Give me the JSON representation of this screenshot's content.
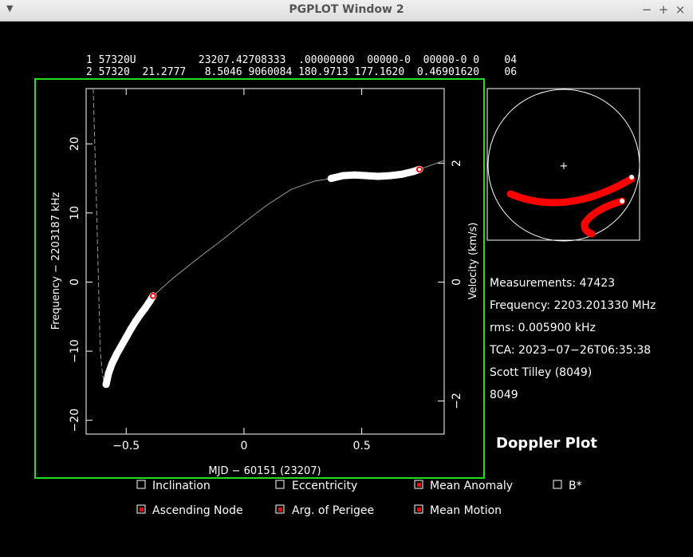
{
  "window": {
    "title": "PGPLOT Window 2"
  },
  "tle": {
    "line1": "1 57320U          23207.42708333  .00000000  00000-0  00000-0 0    04",
    "line2": "2 57320  21.2777   8.5046 9060084 180.9713 177.1620  0.46901620    06"
  },
  "chart_data": {
    "type": "scatter",
    "xlabel": "MJD − 60151 (23207)",
    "ylabel": "Frequency − 2203187 kHz",
    "y2label": "Velocity (km/s)",
    "xlim": [
      -0.67,
      0.85
    ],
    "ylim": [
      -22,
      28
    ],
    "x_ticks": [
      -0.5,
      0,
      0.5
    ],
    "x_tick_labels": [
      "−0.5",
      "0",
      "0.5"
    ],
    "y_ticks": [
      -20,
      -10,
      0,
      10,
      20
    ],
    "y_tick_labels": [
      "−20",
      "−10",
      "0",
      "10",
      "20"
    ],
    "y2_ticks": [
      -2,
      0,
      2
    ],
    "y2_tick_labels": [
      "−2",
      "0",
      "2"
    ],
    "series": [
      {
        "color": "#ffffff",
        "x": [
          -0.585,
          -0.575,
          -0.56,
          -0.54,
          -0.52,
          -0.5,
          -0.48,
          -0.46,
          -0.44,
          -0.42,
          -0.4,
          -0.386
        ],
        "y": [
          -14.8,
          -13.2,
          -11.8,
          -10.4,
          -9.2,
          -8.0,
          -6.8,
          -5.7,
          -4.7,
          -3.8,
          -2.8,
          -2.0
        ]
      },
      {
        "color": "#ffffff",
        "x": [
          0.37,
          0.42,
          0.47,
          0.52,
          0.57,
          0.62,
          0.67,
          0.72,
          0.745
        ],
        "y": [
          15.0,
          15.4,
          15.5,
          15.4,
          15.3,
          15.4,
          15.6,
          16.0,
          16.3
        ]
      }
    ],
    "model_curve": {
      "color": "#9a9a9a",
      "x": [
        -0.385,
        -0.3,
        -0.2,
        -0.1,
        0.0,
        0.1,
        0.2,
        0.3,
        0.37,
        0.45,
        0.55,
        0.65,
        0.745,
        0.85
      ],
      "y": [
        -2.0,
        0.6,
        3.3,
        5.9,
        8.6,
        11.2,
        13.4,
        14.6,
        15.0,
        15.2,
        15.3,
        15.5,
        16.3,
        17.6
      ]
    },
    "steep_curve": {
      "color": "#9a9a9a",
      "x": [
        -0.64,
        -0.625,
        -0.61,
        -0.6,
        -0.59
      ],
      "y": [
        28,
        10,
        -10,
        -13.5,
        -14.8
      ]
    },
    "markers": [
      {
        "x": -0.386,
        "y": -2.0
      },
      {
        "x": 0.745,
        "y": 16.3
      }
    ]
  },
  "sky_inset": {
    "track_color": "#ff0000",
    "center_marker": "+"
  },
  "info": {
    "measurements": "Measurements: 47423",
    "frequency": "Frequency: 2203.201330 MHz",
    "rms": "rms: 0.005900 kHz",
    "tca": "TCA: 2023−07−26T06:35:38",
    "observer": "Scott Tilley (8049)",
    "site_id": "8049",
    "site_color": "#ff0000"
  },
  "plot_title": "Doppler Plot",
  "plot_title_color": "#22dd22",
  "checkboxes": [
    {
      "label": "Inclination",
      "checked": false
    },
    {
      "label": "Eccentricity",
      "checked": false
    },
    {
      "label": "Mean Anomaly",
      "checked": true
    },
    {
      "label": "B*",
      "checked": false
    },
    {
      "label": "Ascending Node",
      "checked": true
    },
    {
      "label": "Arg. of Perigee",
      "checked": true
    },
    {
      "label": "Mean Motion",
      "checked": true
    }
  ]
}
